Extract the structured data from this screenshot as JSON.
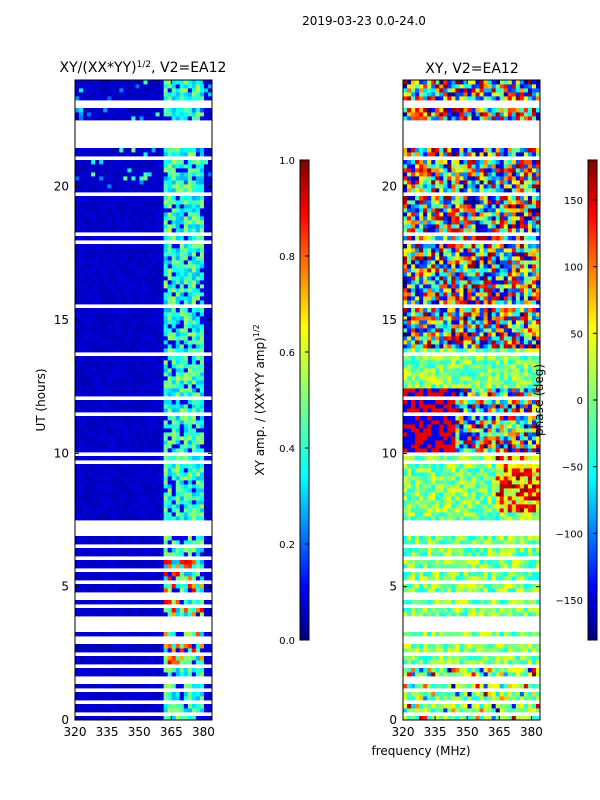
{
  "figure": {
    "suptitle": "2019-03-23 0.0-24.0",
    "shared_xlabel": "frequency (MHz)"
  },
  "chart_data": [
    {
      "type": "heatmap",
      "title_main": "XY/(XX*YY)",
      "title_sup": "1/2",
      "title_tail": ", V2=EA12",
      "xlabel": "",
      "ylabel": "UT (hours)",
      "xlim": [
        320,
        384
      ],
      "ylim": [
        0,
        24
      ],
      "xticks": [
        320,
        335,
        350,
        365,
        380
      ],
      "yticks": [
        0,
        5,
        10,
        15,
        20
      ],
      "colorbar": {
        "label_main": "XY amp. / (XX*YY amp)",
        "label_sup": "1/2",
        "range": [
          0.0,
          1.0
        ],
        "ticks": [
          "0.0",
          "0.2",
          "0.4",
          "0.6",
          "0.8",
          "1.0"
        ],
        "colormap": "jet"
      },
      "description": "Mostly low normalized amplitude (~0.05) with elevated values (0.3-0.8) in 361-380 MHz channels; many flagged (white) time gaps"
    },
    {
      "type": "heatmap",
      "title": "XY, V2=EA12",
      "xlabel": "frequency (MHz)",
      "ylabel": "",
      "xlim": [
        320,
        384
      ],
      "ylim": [
        0,
        24
      ],
      "xticks": [
        320,
        335,
        350,
        365,
        380
      ],
      "yticks": [
        0,
        5,
        10,
        15,
        20
      ],
      "colorbar": {
        "label": "phase (deg)",
        "range": [
          -180,
          180
        ],
        "ticks": [
          "150",
          "100",
          "50",
          "0",
          "−50",
          "−100",
          "−150"
        ],
        "colormap": "jet"
      },
      "description": "XY phase spanning -180 to 180 degrees, noisy; phase near 0-40 deg predominant with coherent structures between 8-12 h"
    }
  ],
  "colors": {
    "axis": "#000000",
    "jet": [
      "#00007f",
      "#0000ff",
      "#007fff",
      "#00ffff",
      "#7fff7f",
      "#ffff00",
      "#ff7f00",
      "#ff0000",
      "#7f0000"
    ]
  }
}
